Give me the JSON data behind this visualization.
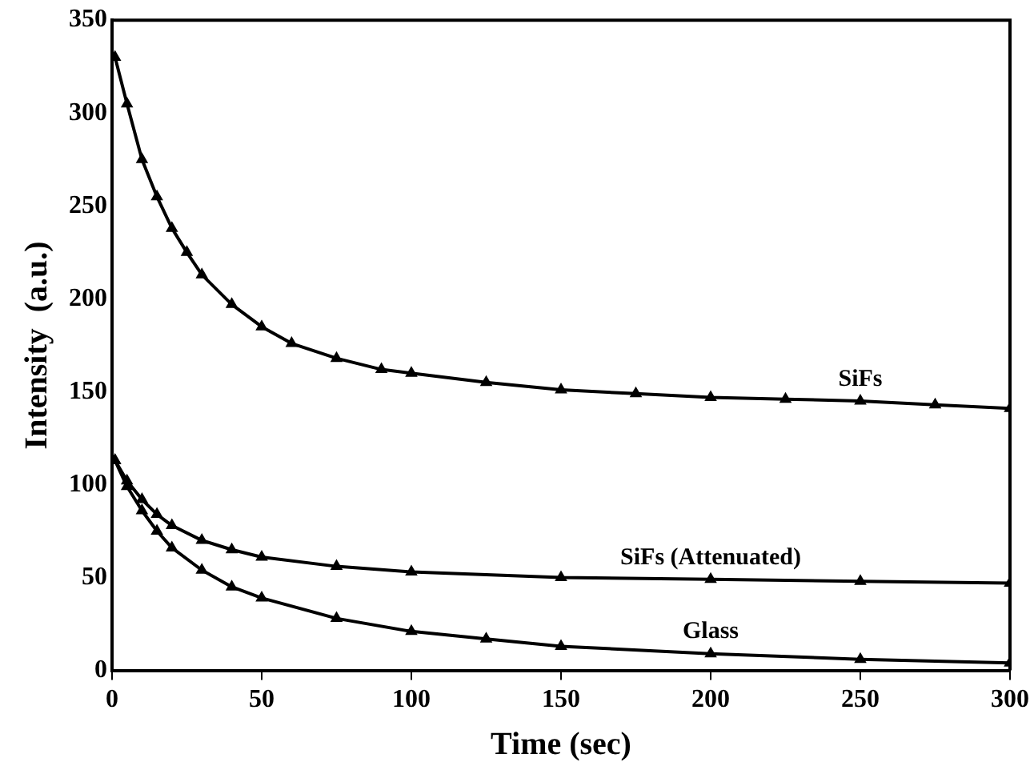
{
  "chart_data": {
    "type": "line",
    "xlabel": "Time (sec)",
    "ylabel": "Intensity  (a.u.)",
    "xlim": [
      0,
      300
    ],
    "ylim": [
      0,
      350
    ],
    "xticks": [
      0,
      50,
      100,
      150,
      200,
      250,
      300
    ],
    "yticks": [
      0,
      50,
      100,
      150,
      200,
      250,
      300,
      350
    ],
    "grid": false,
    "legend": false,
    "marker": "triangle",
    "line_style": "solid",
    "series": [
      {
        "name": "SiFs",
        "color": "#000000",
        "x": [
          1,
          5,
          10,
          15,
          20,
          25,
          30,
          40,
          50,
          60,
          75,
          90,
          100,
          125,
          150,
          175,
          200,
          225,
          250,
          275,
          300
        ],
        "values": [
          330,
          305,
          275,
          255,
          238,
          225,
          213,
          197,
          185,
          176,
          168,
          162,
          160,
          155,
          151,
          149,
          147,
          146,
          145,
          143,
          141
        ]
      },
      {
        "name": "SiFs (Attenuated)",
        "color": "#000000",
        "x": [
          1,
          5,
          10,
          15,
          20,
          30,
          40,
          50,
          75,
          100,
          150,
          200,
          250,
          300
        ],
        "values": [
          113,
          102,
          92,
          84,
          78,
          70,
          65,
          61,
          56,
          53,
          50,
          49,
          48,
          47
        ]
      },
      {
        "name": "Glass",
        "color": "#000000",
        "x": [
          1,
          5,
          10,
          15,
          20,
          30,
          40,
          50,
          75,
          100,
          125,
          150,
          200,
          250,
          300
        ],
        "values": [
          113,
          99,
          86,
          75,
          66,
          54,
          45,
          39,
          28,
          21,
          17,
          13,
          9,
          6,
          4
        ]
      }
    ]
  }
}
